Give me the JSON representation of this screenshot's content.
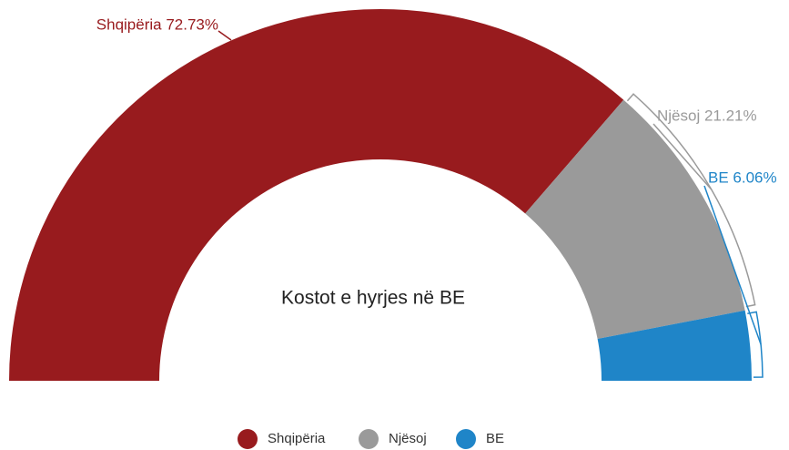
{
  "chart_data": {
    "type": "semi-donut",
    "center_label": "Kostot e hyrjes në BE",
    "categories": [
      "Shqipëria",
      "Njësoj",
      "BE"
    ],
    "values": [
      72.73,
      21.21,
      6.06
    ],
    "value_labels": [
      "Shqipëria 72.73%",
      "Njësoj 21.21%",
      "BE 6.06%"
    ],
    "colors": [
      "#981b1e",
      "#9a9a9a",
      "#1f85c8"
    ],
    "legend": "bottom"
  }
}
